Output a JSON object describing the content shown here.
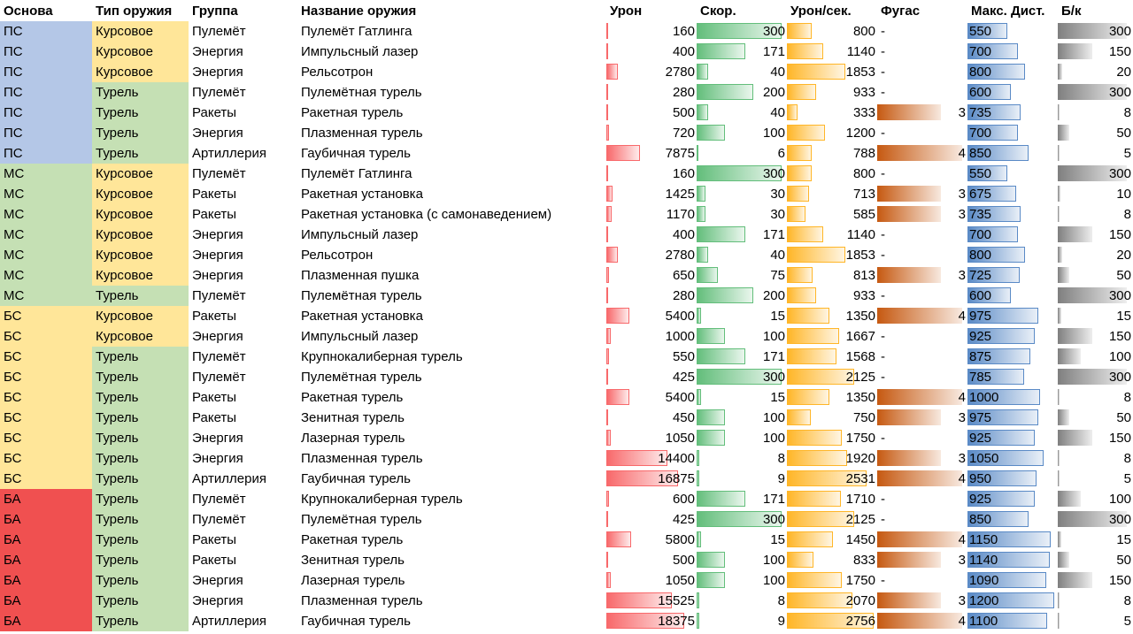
{
  "headers": {
    "base": "Основа",
    "type": "Тип оружия",
    "group": "Группа",
    "name": "Название оружия",
    "damage": "Урон",
    "speed": "Скор.",
    "dps": "Урон/сек.",
    "splash": "Фугас",
    "range": "Макс. Дист.",
    "ammo": "Б/к"
  },
  "colors": {
    "base": {
      "ПС": "#b4c7e7",
      "МС": "#c5e0b4",
      "БС": "#ffe699",
      "БА": "#f05050"
    },
    "type": {
      "Курсовое": "#ffe699",
      "Турель": "#c5e0b4"
    },
    "damage": "#f8696b",
    "speed": "#63be7b",
    "dps": "#ffb628",
    "splash": "#c65911",
    "range": "#5a8ac6",
    "ammo": "#7f7f7f"
  },
  "max": {
    "damage": 18375,
    "speed": 300,
    "dps": 2756,
    "splash": 4,
    "range": 1200,
    "ammo": 300
  },
  "rows": [
    {
      "base": "ПС",
      "type": "Курсовое",
      "group": "Пулемёт",
      "name": "Пулемёт Гатлинга",
      "damage": "160",
      "speed": "300",
      "dps": "800",
      "splash": "-",
      "range": "550",
      "ammo": "300"
    },
    {
      "base": "ПС",
      "type": "Курсовое",
      "group": "Энергия",
      "name": "Импульсный лазер",
      "damage": "400",
      "speed": "171",
      "dps": "1140",
      "splash": "-",
      "range": "700",
      "ammo": "150"
    },
    {
      "base": "ПС",
      "type": "Курсовое",
      "group": "Энергия",
      "name": "Рельсотрон",
      "damage": "2780",
      "speed": "40",
      "dps": "1853",
      "splash": "-",
      "range": "800",
      "ammo": "20"
    },
    {
      "base": "ПС",
      "type": "Турель",
      "group": "Пулемёт",
      "name": "Пулемётная турель",
      "damage": "280",
      "speed": "200",
      "dps": "933",
      "splash": "-",
      "range": "600",
      "ammo": "300"
    },
    {
      "base": "ПС",
      "type": "Турель",
      "group": "Ракеты",
      "name": "Ракетная турель",
      "damage": "500",
      "speed": "40",
      "dps": "333",
      "splash": "3",
      "range": "735",
      "ammo": "8"
    },
    {
      "base": "ПС",
      "type": "Турель",
      "group": "Энергия",
      "name": "Плазменная турель",
      "damage": "720",
      "speed": "100",
      "dps": "1200",
      "splash": "-",
      "range": "700",
      "ammo": "50"
    },
    {
      "base": "ПС",
      "type": "Турель",
      "group": "Артиллерия",
      "name": "Гаубичная турель",
      "damage": "7875",
      "speed": "6",
      "dps": "788",
      "splash": "4",
      "range": "850",
      "ammo": "5"
    },
    {
      "base": "МС",
      "type": "Курсовое",
      "group": "Пулемёт",
      "name": "Пулемёт Гатлинга",
      "damage": "160",
      "speed": "300",
      "dps": "800",
      "splash": "-",
      "range": "550",
      "ammo": "300"
    },
    {
      "base": "МС",
      "type": "Курсовое",
      "group": "Ракеты",
      "name": "Ракетная установка",
      "damage": "1425",
      "speed": "30",
      "dps": "713",
      "splash": "3",
      "range": "675",
      "ammo": "10"
    },
    {
      "base": "МС",
      "type": "Курсовое",
      "group": "Ракеты",
      "name": "Ракетная установка (с самонаведением)",
      "damage": "1170",
      "speed": "30",
      "dps": "585",
      "splash": "3",
      "range": "735",
      "ammo": "8"
    },
    {
      "base": "МС",
      "type": "Курсовое",
      "group": "Энергия",
      "name": "Импульсный лазер",
      "damage": "400",
      "speed": "171",
      "dps": "1140",
      "splash": "-",
      "range": "700",
      "ammo": "150"
    },
    {
      "base": "МС",
      "type": "Курсовое",
      "group": "Энергия",
      "name": "Рельсотрон",
      "damage": "2780",
      "speed": "40",
      "dps": "1853",
      "splash": "-",
      "range": "800",
      "ammo": "20"
    },
    {
      "base": "МС",
      "type": "Курсовое",
      "group": "Энергия",
      "name": "Плазменная пушка",
      "damage": "650",
      "speed": "75",
      "dps": "813",
      "splash": "3",
      "range": "725",
      "ammo": "50"
    },
    {
      "base": "МС",
      "type": "Турель",
      "group": "Пулемёт",
      "name": "Пулемётная турель",
      "damage": "280",
      "speed": "200",
      "dps": "933",
      "splash": "-",
      "range": "600",
      "ammo": "300"
    },
    {
      "base": "БС",
      "type": "Курсовое",
      "group": "Ракеты",
      "name": "Ракетная установка",
      "damage": "5400",
      "speed": "15",
      "dps": "1350",
      "splash": "4",
      "range": "975",
      "ammo": "15"
    },
    {
      "base": "БС",
      "type": "Курсовое",
      "group": "Энергия",
      "name": "Импульсный лазер",
      "damage": "1000",
      "speed": "100",
      "dps": "1667",
      "splash": "-",
      "range": "925",
      "ammo": "150"
    },
    {
      "base": "БС",
      "type": "Турель",
      "group": "Пулемёт",
      "name": "Крупнокалиберная турель",
      "damage": "550",
      "speed": "171",
      "dps": "1568",
      "splash": "-",
      "range": "875",
      "ammo": "100"
    },
    {
      "base": "БС",
      "type": "Турель",
      "group": "Пулемёт",
      "name": "Пулемётная турель",
      "damage": "425",
      "speed": "300",
      "dps": "2125",
      "splash": "-",
      "range": "785",
      "ammo": "300"
    },
    {
      "base": "БС",
      "type": "Турель",
      "group": "Ракеты",
      "name": "Ракетная турель",
      "damage": "5400",
      "speed": "15",
      "dps": "1350",
      "splash": "4",
      "range": "1000",
      "ammo": "8"
    },
    {
      "base": "БС",
      "type": "Турель",
      "group": "Ракеты",
      "name": "Зенитная турель",
      "damage": "450",
      "speed": "100",
      "dps": "750",
      "splash": "3",
      "range": "975",
      "ammo": "50"
    },
    {
      "base": "БС",
      "type": "Турель",
      "group": "Энергия",
      "name": "Лазерная турель",
      "damage": "1050",
      "speed": "100",
      "dps": "1750",
      "splash": "-",
      "range": "925",
      "ammo": "150"
    },
    {
      "base": "БС",
      "type": "Турель",
      "group": "Энергия",
      "name": "Плазменная турель",
      "damage": "14400",
      "speed": "8",
      "dps": "1920",
      "splash": "3",
      "range": "1050",
      "ammo": "8"
    },
    {
      "base": "БС",
      "type": "Турель",
      "group": "Артиллерия",
      "name": "Гаубичная турель",
      "damage": "16875",
      "speed": "9",
      "dps": "2531",
      "splash": "4",
      "range": "950",
      "ammo": "5"
    },
    {
      "base": "БА",
      "type": "Турель",
      "group": "Пулемёт",
      "name": "Крупнокалиберная турель",
      "damage": "600",
      "speed": "171",
      "dps": "1710",
      "splash": "-",
      "range": "925",
      "ammo": "100"
    },
    {
      "base": "БА",
      "type": "Турель",
      "group": "Пулемёт",
      "name": "Пулемётная турель",
      "damage": "425",
      "speed": "300",
      "dps": "2125",
      "splash": "-",
      "range": "850",
      "ammo": "300"
    },
    {
      "base": "БА",
      "type": "Турель",
      "group": "Ракеты",
      "name": "Ракетная турель",
      "damage": "5800",
      "speed": "15",
      "dps": "1450",
      "splash": "4",
      "range": "1150",
      "ammo": "15"
    },
    {
      "base": "БА",
      "type": "Турель",
      "group": "Ракеты",
      "name": "Зенитная турель",
      "damage": "500",
      "speed": "100",
      "dps": "833",
      "splash": "3",
      "range": "1140",
      "ammo": "50"
    },
    {
      "base": "БА",
      "type": "Турель",
      "group": "Энергия",
      "name": "Лазерная турель",
      "damage": "1050",
      "speed": "100",
      "dps": "1750",
      "splash": "-",
      "range": "1090",
      "ammo": "150"
    },
    {
      "base": "БА",
      "type": "Турель",
      "group": "Энергия",
      "name": "Плазменная турель",
      "damage": "15525",
      "speed": "8",
      "dps": "2070",
      "splash": "3",
      "range": "1200",
      "ammo": "8"
    },
    {
      "base": "БА",
      "type": "Турель",
      "group": "Артиллерия",
      "name": "Гаубичная турель",
      "damage": "18375",
      "speed": "9",
      "dps": "2756",
      "splash": "4",
      "range": "1100",
      "ammo": "5"
    }
  ]
}
